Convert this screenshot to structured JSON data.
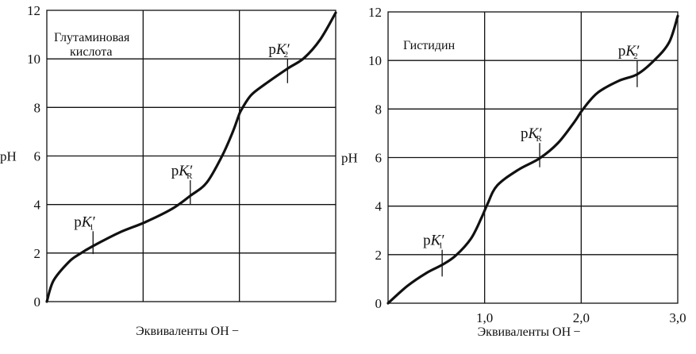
{
  "chart_data": [
    {
      "type": "line",
      "title": "Глутаминовая кислота",
      "title_lines": [
        "Глутаминовая",
        "кислота"
      ],
      "xlabel": "Эквиваленты OH −",
      "ylabel": "pH",
      "xlim": [
        0,
        3
      ],
      "ylim": [
        0,
        12
      ],
      "yticks": [
        "0",
        "2",
        "4",
        "6",
        "8",
        "10",
        "12"
      ],
      "xticks": [],
      "grid": true,
      "series": [
        {
          "name": "Глутаминовая кислота",
          "x": [
            0,
            0.07,
            0.23,
            0.34,
            0.48,
            0.75,
            1.02,
            1.3,
            1.49,
            1.66,
            1.82,
            1.93,
            1.99,
            2.02,
            2.12,
            2.26,
            2.5,
            2.67,
            2.84,
            3.0
          ],
          "y": [
            0,
            0.87,
            1.64,
            1.96,
            2.29,
            2.84,
            3.27,
            3.82,
            4.36,
            4.9,
            6.0,
            6.98,
            7.63,
            7.9,
            8.5,
            8.94,
            9.6,
            10.03,
            10.8,
            11.9
          ]
        }
      ],
      "annotations": [
        {
          "label": "pK",
          "sub": "1",
          "x": 0.48,
          "y": 2.3,
          "tick": [
            1.96,
            2.9
          ]
        },
        {
          "label": "pK",
          "sub": "R",
          "x": 1.49,
          "y": 4.3,
          "tick": [
            4.0,
            5.0
          ]
        },
        {
          "label": "pK",
          "sub": "2",
          "x": 2.5,
          "y": 9.6,
          "tick": [
            9.0,
            10.0
          ]
        }
      ]
    },
    {
      "type": "line",
      "title": "Гистидин",
      "title_lines": [
        "Гистидин"
      ],
      "xlabel": "Эквиваленты OH −",
      "ylabel": "pH",
      "xlim": [
        0,
        3
      ],
      "ylim": [
        0,
        12
      ],
      "yticks": [
        "0",
        "2",
        "4",
        "6",
        "8",
        "10",
        "12"
      ],
      "xticks": [
        "1,0",
        "2,0",
        "3,0"
      ],
      "grid": true,
      "series": [
        {
          "name": "Гистидин",
          "x": [
            0,
            0.2,
            0.4,
            0.56,
            0.7,
            0.86,
            0.97,
            1.03,
            1.13,
            1.35,
            1.57,
            1.76,
            1.93,
            2.02,
            2.17,
            2.39,
            2.58,
            2.75,
            2.91,
            3.0
          ],
          "y": [
            0,
            0.71,
            1.25,
            1.58,
            1.96,
            2.67,
            3.54,
            4.09,
            4.85,
            5.5,
            5.97,
            6.6,
            7.47,
            8.0,
            8.67,
            9.16,
            9.43,
            9.98,
            10.74,
            11.83
          ]
        }
      ],
      "annotations": [
        {
          "label": "pK",
          "sub": "1",
          "x": 0.56,
          "y": 1.6,
          "tick": [
            1.1,
            2.2
          ]
        },
        {
          "label": "pK",
          "sub": "R",
          "x": 1.57,
          "y": 6.0,
          "tick": [
            5.6,
            6.6
          ]
        },
        {
          "label": "pK",
          "sub": "2",
          "x": 2.58,
          "y": 9.4,
          "tick": [
            8.9,
            10.0
          ]
        }
      ]
    }
  ]
}
